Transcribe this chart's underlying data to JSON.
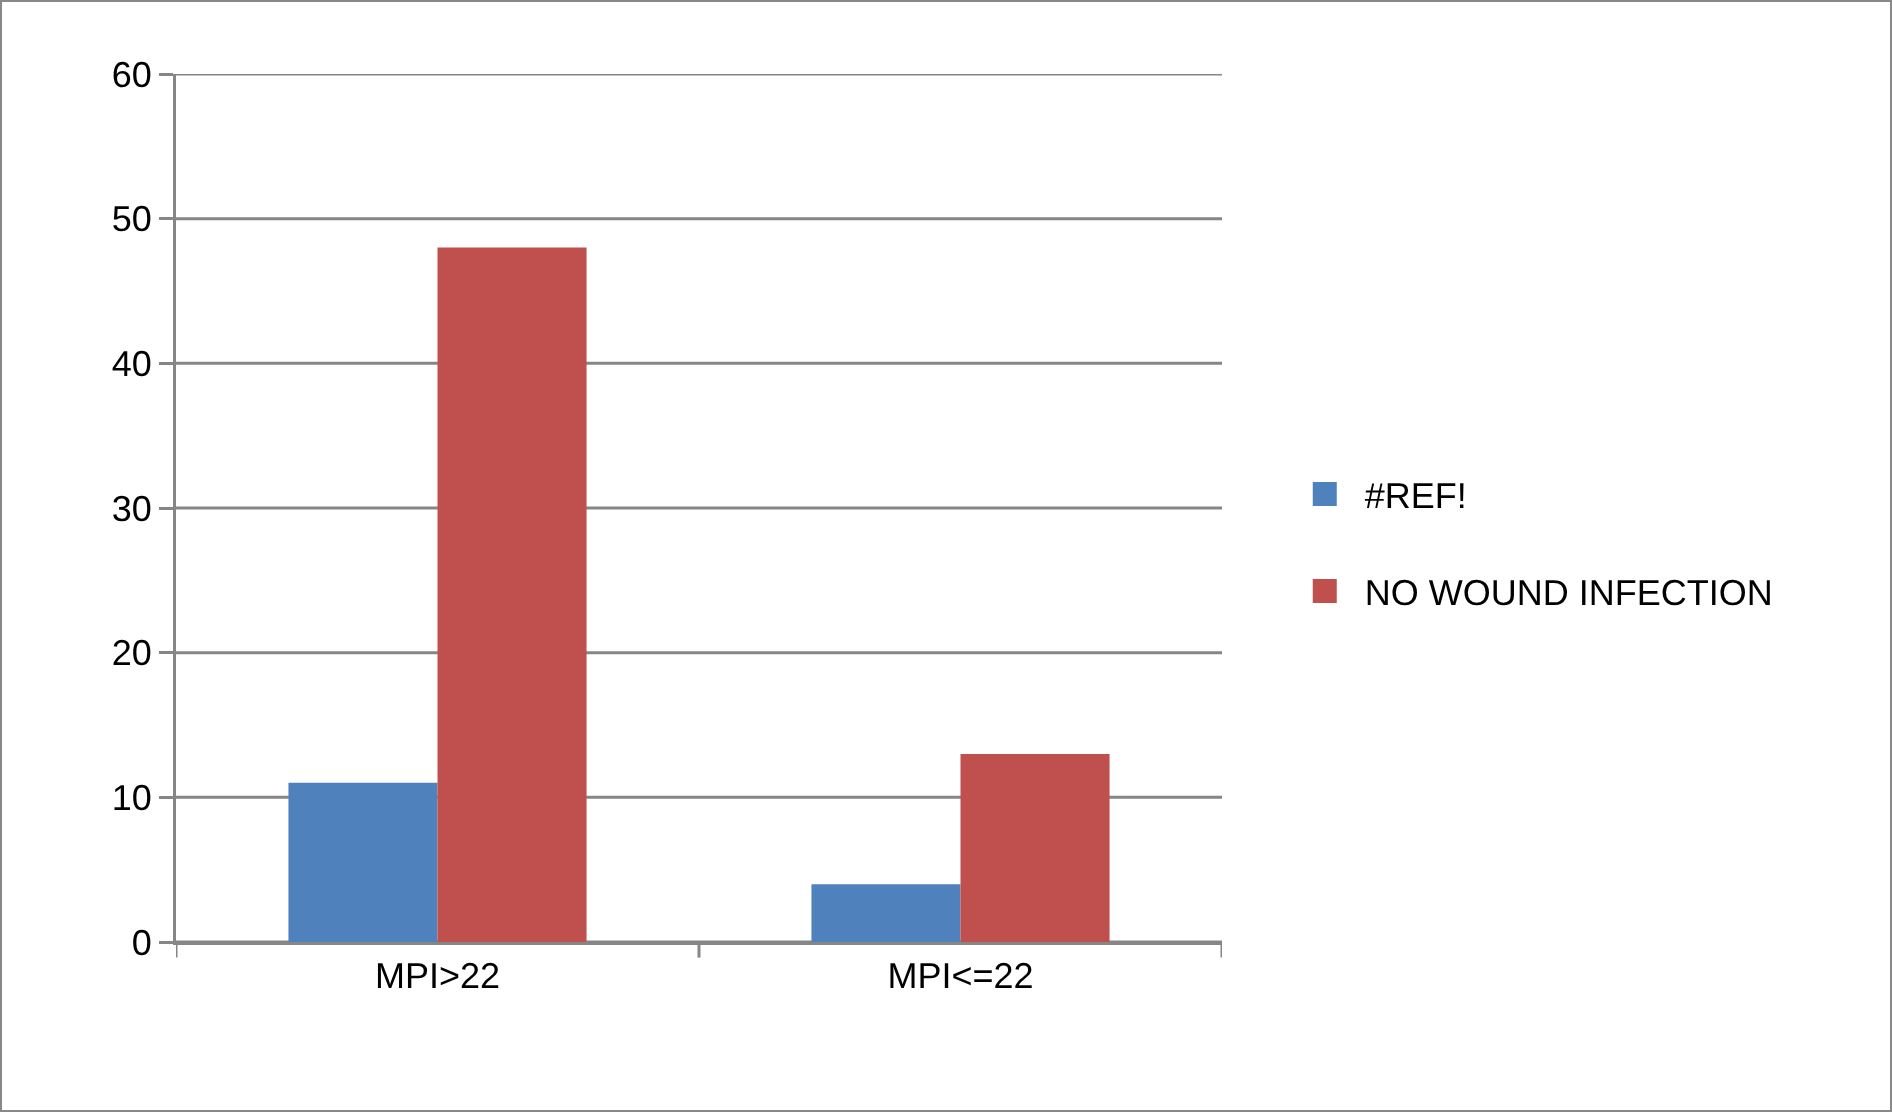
{
  "chart_data": {
    "type": "bar",
    "categories": [
      "MPI>22",
      "MPI<=22"
    ],
    "series": [
      {
        "name": "#REF!",
        "color": "#4f81bd",
        "values": [
          11,
          4
        ]
      },
      {
        "name": "NO WOUND INFECTION",
        "color": "#c0504d",
        "values": [
          48,
          13
        ]
      }
    ],
    "ylim": [
      0,
      60
    ],
    "yticks": [
      0,
      10,
      20,
      30,
      40,
      50,
      60
    ],
    "grid": "y",
    "legend": "right"
  }
}
